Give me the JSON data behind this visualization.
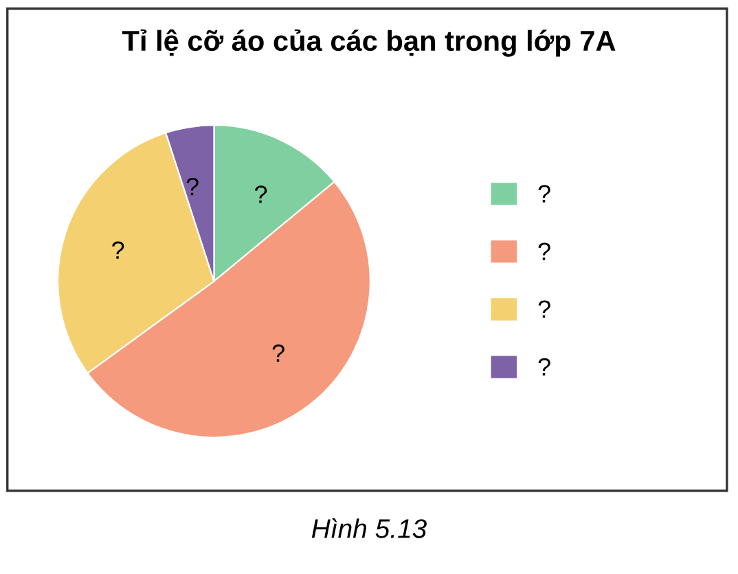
{
  "chart_data": {
    "type": "pie",
    "title": "Tỉ lệ cỡ áo của các bạn trong lớp 7A",
    "categories": [
      "?",
      "?",
      "?",
      "?"
    ],
    "values": [
      14,
      51,
      30,
      5
    ],
    "colors": [
      "#7fcfa0",
      "#f59a7c",
      "#f4d070",
      "#7e62a8"
    ],
    "legend": "right",
    "annotations": [
      "Hình 5.13"
    ]
  }
}
